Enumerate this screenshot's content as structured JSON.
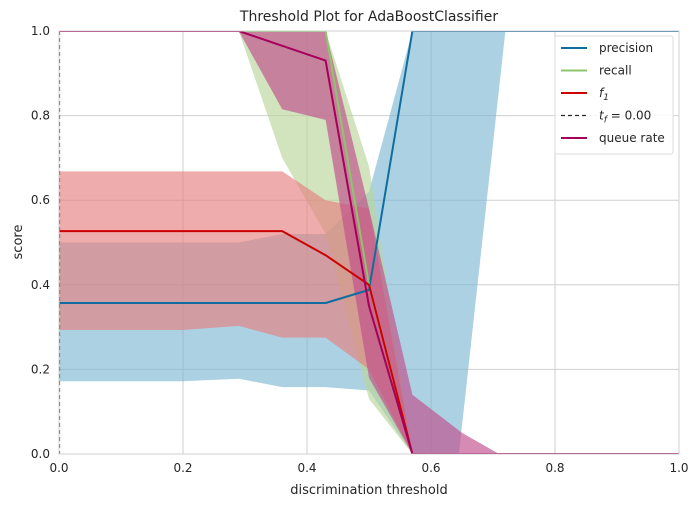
{
  "chart_data": {
    "type": "line",
    "title": "Threshold Plot for AdaBoostClassifier",
    "xlabel": "discrimination threshold",
    "ylabel": "score",
    "xlim": [
      0,
      1
    ],
    "ylim": [
      0,
      1
    ],
    "xticks": [
      "0.0",
      "0.2",
      "0.4",
      "0.6",
      "0.8",
      "1.0"
    ],
    "yticks": [
      "0.0",
      "0.2",
      "0.4",
      "0.6",
      "0.8",
      "1.0"
    ],
    "grid": true,
    "legend_position": "top-right",
    "threshold_line": {
      "x": 0.0,
      "color": "#4d4d4d",
      "style": "dashed"
    },
    "series": [
      {
        "name": "precision",
        "color": "#1f77b4",
        "line_color": "#0e6ea0",
        "band_color": "#7fb8d3",
        "points": [
          [
            0.0,
            0.357
          ],
          [
            0.2,
            0.357
          ],
          [
            0.36,
            0.357
          ],
          [
            0.43,
            0.357
          ],
          [
            0.5,
            0.388
          ],
          [
            0.57,
            1.0
          ],
          [
            0.72,
            1.0
          ],
          [
            1.0,
            1.0
          ]
        ],
        "band_upper": [
          [
            0.0,
            0.5
          ],
          [
            0.2,
            0.5
          ],
          [
            0.29,
            0.5
          ],
          [
            0.36,
            0.52
          ],
          [
            0.43,
            0.52
          ],
          [
            0.5,
            0.62
          ],
          [
            0.57,
            1.0
          ],
          [
            1.0,
            1.0
          ]
        ],
        "band_lower": [
          [
            0.0,
            0.172
          ],
          [
            0.2,
            0.172
          ],
          [
            0.29,
            0.178
          ],
          [
            0.36,
            0.158
          ],
          [
            0.43,
            0.158
          ],
          [
            0.5,
            0.15
          ],
          [
            0.57,
            0.0
          ],
          [
            0.645,
            0.0
          ],
          [
            0.72,
            1.0
          ],
          [
            1.0,
            1.0
          ]
        ]
      },
      {
        "name": "recall",
        "color": "#8cc56d",
        "line_color": "#8cc56d",
        "band_color": "#b8d59a",
        "points": [
          [
            0.0,
            1.0
          ],
          [
            0.43,
            1.0
          ],
          [
            0.5,
            0.4
          ],
          [
            0.57,
            0.0
          ],
          [
            1.0,
            0.0
          ]
        ],
        "band_upper": [
          [
            0.0,
            1.0
          ],
          [
            0.43,
            1.0
          ],
          [
            0.5,
            0.68
          ],
          [
            0.57,
            0.0
          ],
          [
            1.0,
            0.0
          ]
        ],
        "band_lower": [
          [
            0.0,
            1.0
          ],
          [
            0.29,
            1.0
          ],
          [
            0.36,
            0.7
          ],
          [
            0.43,
            0.52
          ],
          [
            0.5,
            0.13
          ],
          [
            0.57,
            0.0
          ],
          [
            1.0,
            0.0
          ]
        ]
      },
      {
        "name": "f1",
        "color": "#c8102e",
        "line_color": "#cc0000",
        "band_color": "#e58080",
        "points": [
          [
            0.0,
            0.527
          ],
          [
            0.2,
            0.527
          ],
          [
            0.36,
            0.527
          ],
          [
            0.43,
            0.47
          ],
          [
            0.5,
            0.4
          ],
          [
            0.57,
            0.0
          ],
          [
            1.0,
            0.0
          ]
        ],
        "band_upper": [
          [
            0.0,
            0.668
          ],
          [
            0.2,
            0.668
          ],
          [
            0.36,
            0.668
          ],
          [
            0.43,
            0.6
          ],
          [
            0.5,
            0.58
          ],
          [
            0.57,
            0.0
          ],
          [
            1.0,
            0.0
          ]
        ],
        "band_lower": [
          [
            0.0,
            0.293
          ],
          [
            0.2,
            0.293
          ],
          [
            0.29,
            0.303
          ],
          [
            0.36,
            0.275
          ],
          [
            0.43,
            0.275
          ],
          [
            0.5,
            0.2
          ],
          [
            0.57,
            0.0
          ],
          [
            1.0,
            0.0
          ]
        ]
      },
      {
        "name": "queue rate",
        "color": "#a3005c",
        "line_color": "#a5005a",
        "band_color": "#c04d8c",
        "points": [
          [
            0.0,
            1.0
          ],
          [
            0.29,
            1.0
          ],
          [
            0.43,
            0.93
          ],
          [
            0.5,
            0.35
          ],
          [
            0.57,
            0.0
          ],
          [
            1.0,
            0.0
          ]
        ],
        "band_upper": [
          [
            0.0,
            1.0
          ],
          [
            0.43,
            1.0
          ],
          [
            0.5,
            0.58
          ],
          [
            0.57,
            0.14
          ],
          [
            0.65,
            0.05
          ],
          [
            0.71,
            0.0
          ],
          [
            1.0,
            0.0
          ]
        ],
        "band_lower": [
          [
            0.0,
            1.0
          ],
          [
            0.29,
            1.0
          ],
          [
            0.36,
            0.815
          ],
          [
            0.43,
            0.79
          ],
          [
            0.5,
            0.18
          ],
          [
            0.57,
            0.0
          ],
          [
            1.0,
            0.0
          ]
        ]
      }
    ],
    "legend": [
      {
        "label": "precision",
        "color": "#0e6ea0",
        "style": "solid"
      },
      {
        "label": "recall",
        "color": "#8cc56d",
        "style": "solid"
      },
      {
        "label": "f",
        "sub": "1",
        "color": "#cc0000",
        "style": "solid",
        "italic": true
      },
      {
        "label": "t",
        "sub": "f",
        "suffix": " = 0.00",
        "color": "#262626",
        "style": "dashed",
        "italic": true
      },
      {
        "label": "queue rate",
        "color": "#a5005a",
        "style": "solid"
      }
    ]
  }
}
